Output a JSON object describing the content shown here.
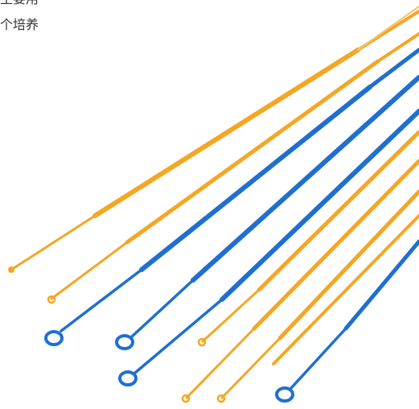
{
  "caption": {
    "line_1": "主要用",
    "line_2": "个培养"
  },
  "colors": {
    "orange": "#f5a623",
    "orange_dark": "#e8931b",
    "blue": "#1f6fd1",
    "blue_dark": "#1a5db8",
    "text": "#333333"
  },
  "loops": [
    {
      "color": "orange",
      "tip": "small"
    },
    {
      "color": "orange",
      "tip": "small"
    },
    {
      "color": "blue",
      "tip": "ring"
    },
    {
      "color": "blue",
      "tip": "ring"
    },
    {
      "color": "blue",
      "tip": "ring"
    },
    {
      "color": "orange",
      "tip": "small"
    },
    {
      "color": "orange",
      "tip": "small"
    },
    {
      "color": "orange",
      "tip": "small"
    },
    {
      "color": "blue",
      "tip": "ring"
    }
  ]
}
